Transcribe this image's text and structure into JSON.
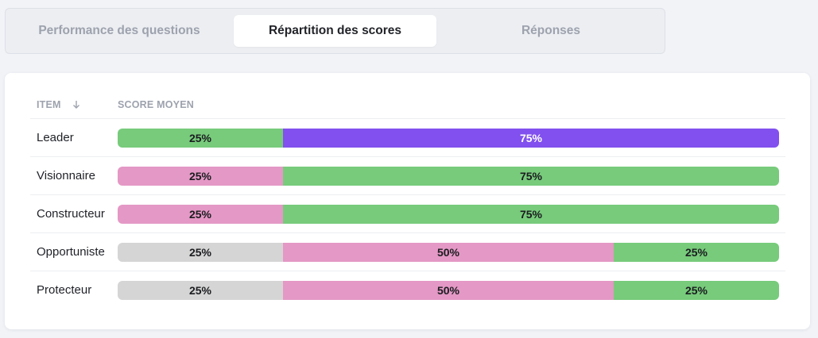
{
  "tabs": [
    {
      "label": "Performance des questions",
      "active": false
    },
    {
      "label": "Répartition des scores",
      "active": true
    },
    {
      "label": "Réponses",
      "active": false
    }
  ],
  "table": {
    "columns": {
      "item": "ITEM",
      "score": "SCORE MOYEN"
    },
    "sort_icon": "arrow-down-icon"
  },
  "colors": {
    "green": "#77cb7b",
    "purple": "#8150ee",
    "pink": "#e498c5",
    "gray": "#d5d5d5"
  },
  "rows": [
    {
      "label": "Leader",
      "segments": [
        {
          "label": "25%",
          "value": 25,
          "color": "green"
        },
        {
          "label": "75%",
          "value": 75,
          "color": "purple"
        }
      ]
    },
    {
      "label": "Visionnaire",
      "segments": [
        {
          "label": "25%",
          "value": 25,
          "color": "pink"
        },
        {
          "label": "75%",
          "value": 75,
          "color": "green"
        }
      ]
    },
    {
      "label": "Constructeur",
      "segments": [
        {
          "label": "25%",
          "value": 25,
          "color": "pink"
        },
        {
          "label": "75%",
          "value": 75,
          "color": "green"
        }
      ]
    },
    {
      "label": "Opportuniste",
      "segments": [
        {
          "label": "25%",
          "value": 25,
          "color": "gray"
        },
        {
          "label": "50%",
          "value": 50,
          "color": "pink"
        },
        {
          "label": "25%",
          "value": 25,
          "color": "green"
        }
      ]
    },
    {
      "label": "Protecteur",
      "segments": [
        {
          "label": "25%",
          "value": 25,
          "color": "gray"
        },
        {
          "label": "50%",
          "value": 50,
          "color": "pink"
        },
        {
          "label": "25%",
          "value": 25,
          "color": "green"
        }
      ]
    }
  ]
}
